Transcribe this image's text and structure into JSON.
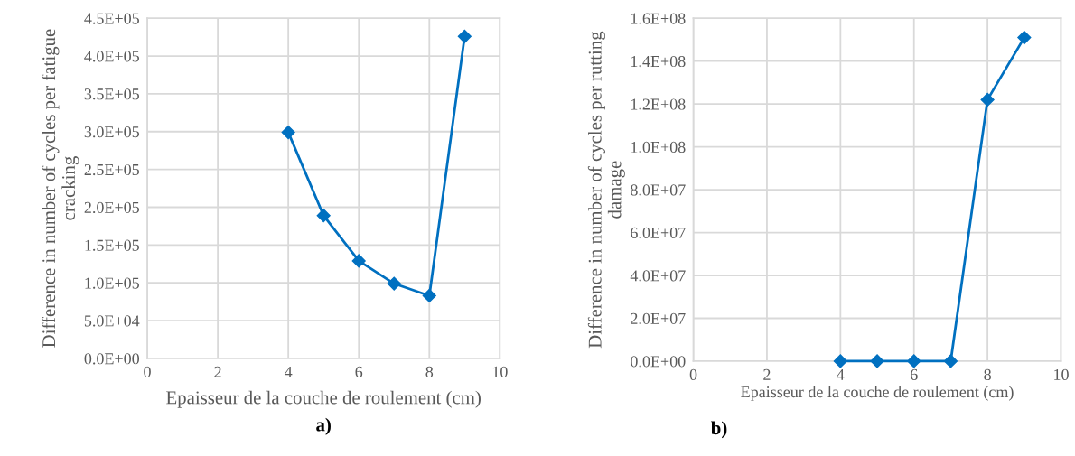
{
  "chart_data": [
    {
      "type": "line",
      "x": [
        4,
        5,
        6,
        7,
        8,
        9
      ],
      "series": [
        {
          "color": "#0070c0",
          "values": [
            299000,
            189000,
            129000,
            99000,
            83000,
            426000
          ]
        }
      ],
      "xlabel": "Epaisseur de la couche de roulement (cm)",
      "ylabel": "Difference in number of cycles per fatigue cracking",
      "xlim": [
        0,
        10
      ],
      "xticks": [
        0,
        2,
        4,
        6,
        8,
        10
      ],
      "ylim": [
        0,
        450000
      ],
      "yticks": [
        {
          "value": 0,
          "label": "0.0E+00"
        },
        {
          "value": 50000,
          "label": "5.0E+04"
        },
        {
          "value": 100000,
          "label": "1.0E+05"
        },
        {
          "value": 150000,
          "label": "1.5E+05"
        },
        {
          "value": 200000,
          "label": "2.0E+05"
        },
        {
          "value": 250000,
          "label": "2.5E+05"
        },
        {
          "value": 300000,
          "label": "3.0E+05"
        },
        {
          "value": 350000,
          "label": "3.5E+05"
        },
        {
          "value": 400000,
          "label": "4.0E+05"
        },
        {
          "value": 450000,
          "label": "4.5E+05"
        }
      ],
      "grid": true,
      "marker": "diamond",
      "line_style": "solid",
      "annotations": [
        "a)"
      ]
    },
    {
      "type": "line",
      "x": [
        4,
        5,
        6,
        7,
        8,
        9
      ],
      "series": [
        {
          "color": "#0070c0",
          "values": [
            0,
            0,
            0,
            0,
            122000000,
            151000000
          ]
        }
      ],
      "xlabel": "Epaisseur de la couche de roulement (cm)",
      "ylabel": "Difference in number of cycles per rutting damage",
      "xlim": [
        0,
        10
      ],
      "xticks": [
        0,
        2,
        4,
        6,
        8,
        10
      ],
      "ylim": [
        0,
        160000000
      ],
      "yticks": [
        {
          "value": 0,
          "label": "0.0E+00"
        },
        {
          "value": 20000000,
          "label": "2.0E+07"
        },
        {
          "value": 40000000,
          "label": "4.0E+07"
        },
        {
          "value": 60000000,
          "label": "6.0E+07"
        },
        {
          "value": 80000000,
          "label": "8.0E+07"
        },
        {
          "value": 100000000,
          "label": "1.0E+08"
        },
        {
          "value": 120000000,
          "label": "1.2E+08"
        },
        {
          "value": 140000000,
          "label": "1.4E+08"
        },
        {
          "value": 160000000,
          "label": "1.6E+08"
        }
      ],
      "grid": true,
      "marker": "diamond",
      "line_style": "solid",
      "annotations": [
        "b)"
      ]
    }
  ]
}
